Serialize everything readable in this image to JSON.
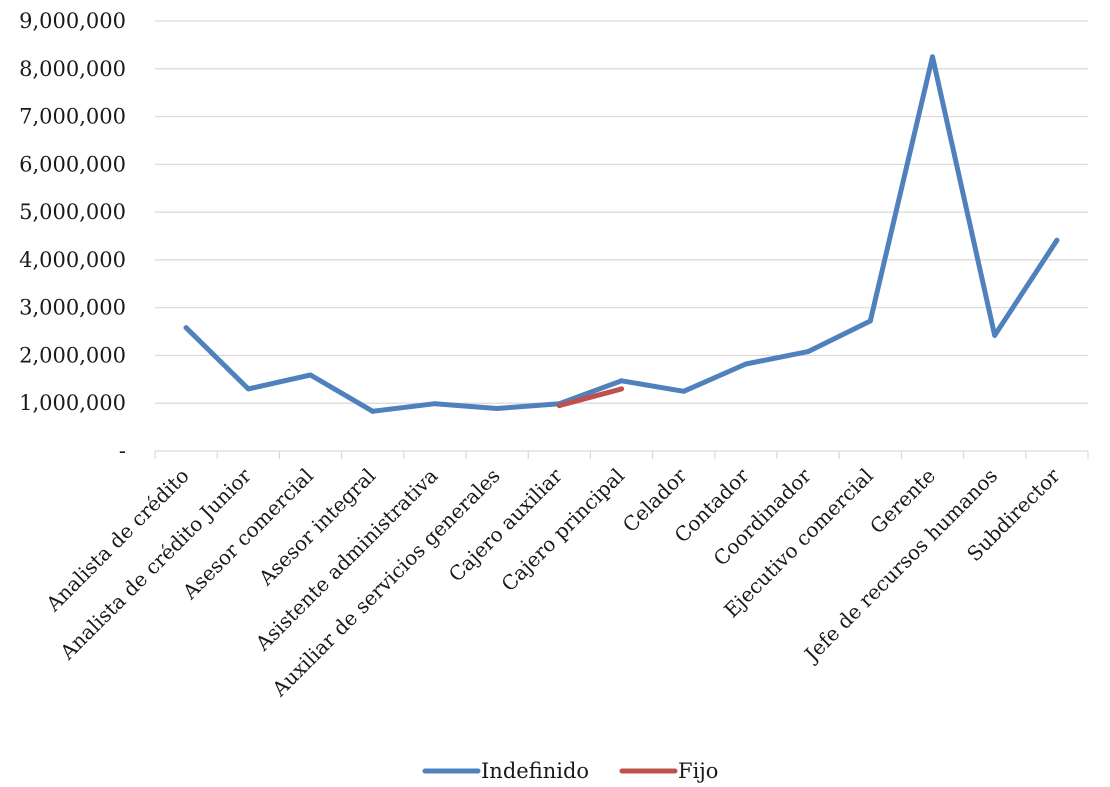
{
  "chart_data": {
    "type": "line",
    "categories": [
      "Analista de crédito",
      "Analista de crédito Junior",
      "Asesor comercial",
      "Asesor integral",
      "Asistente administrativa",
      "Auxiliar de servicios generales",
      "Cajero auxiliar",
      "Cajero principal",
      "Celador",
      "Contador",
      "Coordinador",
      "Ejecutivo comercial",
      "Gerente",
      "Jefe de recursos humanos",
      "Subdirector"
    ],
    "series": [
      {
        "name": "Indefinido",
        "color": "#4f81bd",
        "values": [
          2580000,
          1300000,
          1590000,
          830000,
          990000,
          890000,
          990000,
          1470000,
          1250000,
          1820000,
          2080000,
          2720000,
          8250000,
          2420000,
          4410000
        ]
      },
      {
        "name": "Fijo",
        "color": "#c0504d",
        "values": [
          null,
          null,
          null,
          null,
          null,
          null,
          950000,
          1300000,
          null,
          null,
          null,
          null,
          null,
          null,
          null
        ]
      }
    ],
    "y_tick_labels": [
      "-",
      "1,000,000",
      "2,000,000",
      "3,000,000",
      "4,000,000",
      "5,000,000",
      "6,000,000",
      "7,000,000",
      "8,000,000",
      "9,000,000"
    ],
    "ylim": [
      0,
      9000000
    ],
    "y_step": 1000000,
    "grid": true,
    "legend_position": "bottom"
  }
}
